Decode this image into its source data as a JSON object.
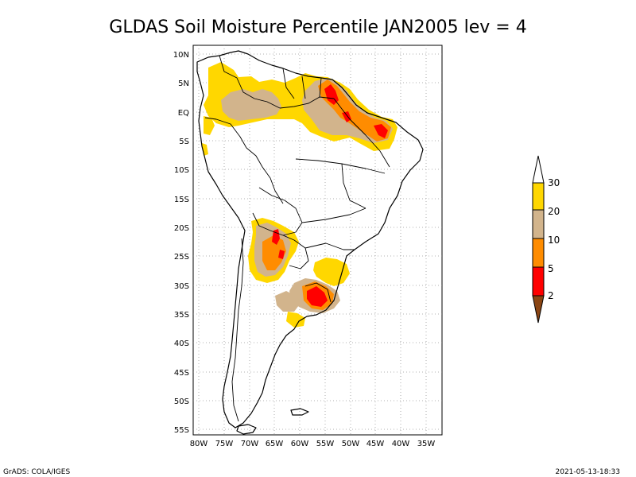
{
  "title": "GLDAS Soil Moisture Percentile JAN2005 lev = 4",
  "footer": {
    "left": "GrADS: COLA/IGES",
    "right": "2021-05-13-18:33"
  },
  "axes": {
    "lat_labels": [
      "10N",
      "5N",
      "EQ",
      "5S",
      "10S",
      "15S",
      "20S",
      "25S",
      "30S",
      "35S",
      "40S",
      "45S",
      "50S",
      "55S"
    ],
    "lon_labels": [
      "80W",
      "75W",
      "70W",
      "65W",
      "60W",
      "55W",
      "50W",
      "45W",
      "40W",
      "35W"
    ]
  },
  "legend": {
    "labels": [
      "30",
      "20",
      "10",
      "5",
      "2"
    ],
    "colors": {
      "top_white": "#ffffff",
      "c20_30": "#ffd700",
      "c10_20": "#d2b48c",
      "c5_10": "#ff8c00",
      "c2_5": "#ff0000",
      "c0_2": "#8b4513"
    }
  },
  "chart_data": {
    "type": "heatmap",
    "title": "GLDAS Soil Moisture Percentile JAN2005 lev = 4",
    "xlim": [
      "82W",
      "33W"
    ],
    "ylim": [
      "56S",
      "12N"
    ],
    "grid": true,
    "levels": [
      2,
      5,
      10,
      20,
      30
    ],
    "legend_position": "right"
  }
}
